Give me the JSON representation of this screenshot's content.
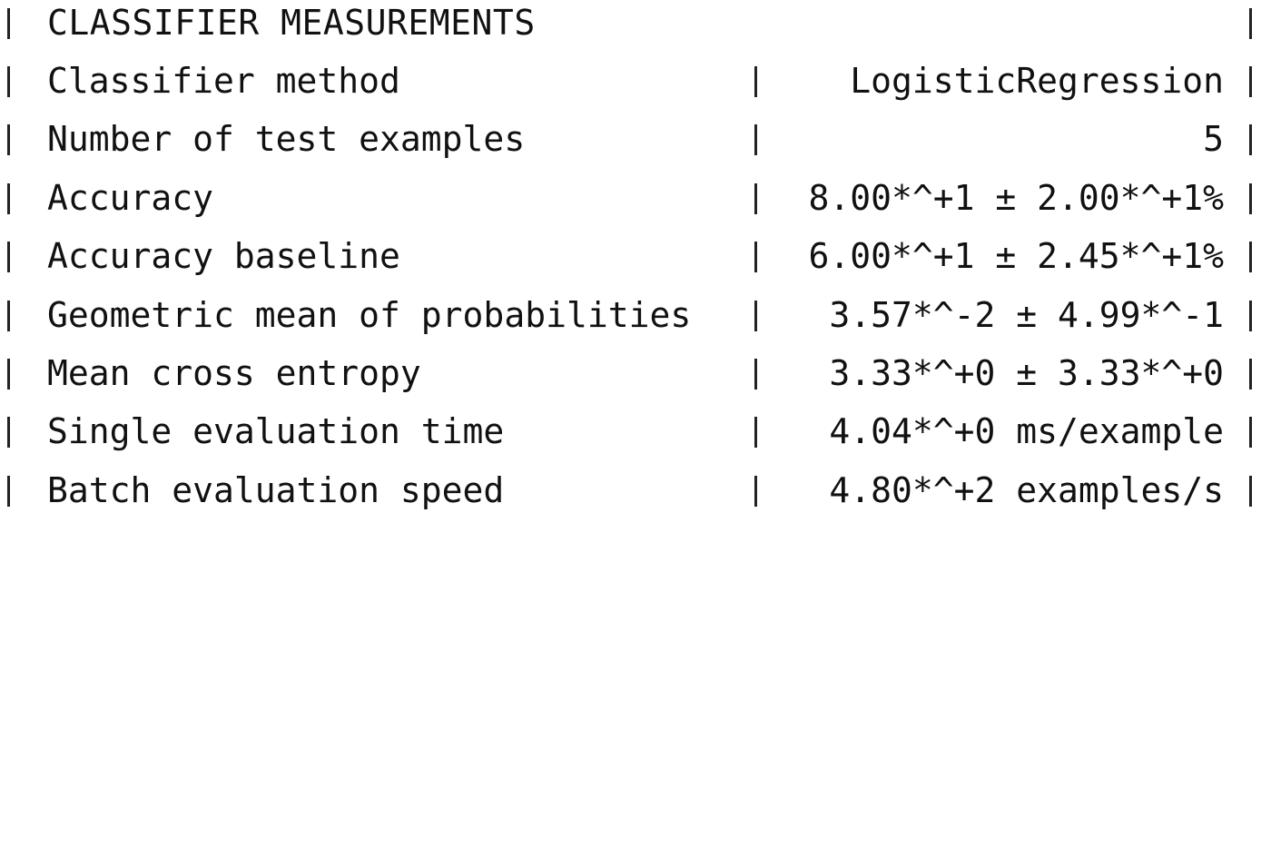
{
  "title": "CLASSIFIER MEASUREMENTS",
  "rows": [
    {
      "label": "Classifier method",
      "value": "LogisticRegression"
    },
    {
      "label": "Number of test examples",
      "value": "5"
    },
    {
      "label": "Accuracy",
      "value": "8.00*^+1 ± 2.00*^+1%"
    },
    {
      "label": "Accuracy baseline",
      "value": "6.00*^+1 ± 2.45*^+1%"
    },
    {
      "label": "Geometric mean of probabilities",
      "value": "3.57*^-2 ± 4.99*^-1"
    },
    {
      "label": "Mean cross entropy",
      "value": "3.33*^+0 ± 3.33*^+0"
    },
    {
      "label": "Single evaluation time",
      "value": "4.04*^+0 ms/example"
    },
    {
      "label": "Batch evaluation speed",
      "value": "4.80*^+2 examples/s"
    }
  ]
}
